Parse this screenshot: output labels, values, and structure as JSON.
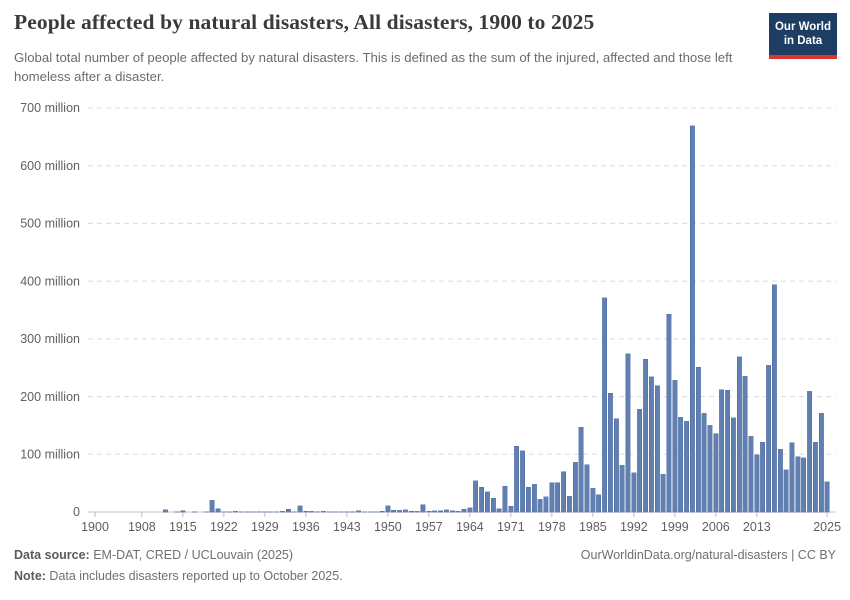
{
  "header": {
    "title": "People affected by natural disasters, All disasters, 1900 to 2025",
    "subtitle": "Global total number of people affected by natural disasters. This is defined as the sum of the injured, affected and those left homeless after a disaster."
  },
  "logo": {
    "line1": "Our World",
    "line2": "in Data",
    "bg_color": "#1d3d63",
    "accent_color": "#dc352a"
  },
  "chart_data": {
    "type": "bar",
    "title": "People affected by natural disasters, All disasters, 1900 to 2025",
    "ylabel": "",
    "xlabel": "",
    "unit": "million people",
    "ylim": [
      0,
      700
    ],
    "grid": "horizontal-dashed",
    "legend_position": "none",
    "bar_color": "#6180b2",
    "bar_stroke": "#4d689f",
    "y_ticks": [
      0,
      100,
      200,
      300,
      400,
      500,
      600,
      700
    ],
    "y_tick_suffix": " million",
    "x_tick_years": [
      1900,
      1908,
      1915,
      1922,
      1929,
      1936,
      1943,
      1950,
      1957,
      1964,
      1971,
      1978,
      1985,
      1992,
      1999,
      2006,
      2013,
      2025
    ],
    "x": [
      1900,
      1901,
      1902,
      1903,
      1904,
      1905,
      1906,
      1907,
      1908,
      1909,
      1910,
      1911,
      1912,
      1913,
      1914,
      1915,
      1916,
      1917,
      1918,
      1919,
      1920,
      1921,
      1922,
      1923,
      1924,
      1925,
      1926,
      1927,
      1928,
      1929,
      1930,
      1931,
      1932,
      1933,
      1934,
      1935,
      1936,
      1937,
      1938,
      1939,
      1940,
      1941,
      1942,
      1943,
      1944,
      1945,
      1946,
      1947,
      1948,
      1949,
      1950,
      1951,
      1952,
      1953,
      1954,
      1955,
      1956,
      1957,
      1958,
      1959,
      1960,
      1961,
      1962,
      1963,
      1964,
      1965,
      1966,
      1967,
      1968,
      1969,
      1970,
      1971,
      1972,
      1973,
      1974,
      1975,
      1976,
      1977,
      1978,
      1979,
      1980,
      1981,
      1982,
      1983,
      1984,
      1985,
      1986,
      1987,
      1988,
      1989,
      1990,
      1991,
      1992,
      1993,
      1994,
      1995,
      1996,
      1997,
      1998,
      1999,
      2000,
      2001,
      2002,
      2003,
      2004,
      2005,
      2006,
      2007,
      2008,
      2009,
      2010,
      2011,
      2012,
      2013,
      2014,
      2015,
      2016,
      2017,
      2018,
      2019,
      2020,
      2021,
      2022,
      2023,
      2024,
      2025
    ],
    "values": [
      0,
      0,
      0,
      0,
      0,
      0,
      0,
      0,
      0,
      0,
      0,
      0,
      4,
      0,
      0.3,
      2.5,
      0,
      0.1,
      0,
      0.2,
      20,
      6,
      0.1,
      0.2,
      1,
      0.1,
      0.3,
      0.2,
      0.5,
      0.4,
      0.1,
      0.3,
      1,
      5,
      0.3,
      10.5,
      1.5,
      1,
      0.8,
      1,
      0.1,
      0.3,
      0.2,
      0.1,
      0.5,
      2.5,
      0.3,
      0.3,
      0.4,
      1.7,
      10.5,
      3.2,
      3,
      3.5,
      1.5,
      1,
      13,
      1.5,
      1.8,
      2.5,
      3.5,
      2.3,
      1.5,
      5,
      7,
      54,
      43,
      35,
      24,
      6,
      45,
      10,
      114,
      106,
      43,
      48,
      22,
      26,
      51,
      51,
      70,
      27,
      86,
      147,
      82,
      41,
      30,
      371,
      206,
      162,
      81,
      274,
      68,
      178,
      265,
      234,
      219,
      65,
      343,
      228,
      164,
      157,
      669,
      251,
      171,
      150,
      136,
      212,
      211,
      163,
      269,
      235,
      131,
      99,
      121,
      254,
      394,
      109,
      73,
      120,
      96,
      94,
      209,
      121,
      171,
      52
    ]
  },
  "footer": {
    "source_label": "Data source:",
    "source_text": " EM-DAT, CRED / UCLouvain (2025)",
    "link_text": "OurWorldinData.org/natural-disasters | CC BY",
    "note_label": "Note:",
    "note_text": " Data includes disasters reported up to October 2025."
  }
}
